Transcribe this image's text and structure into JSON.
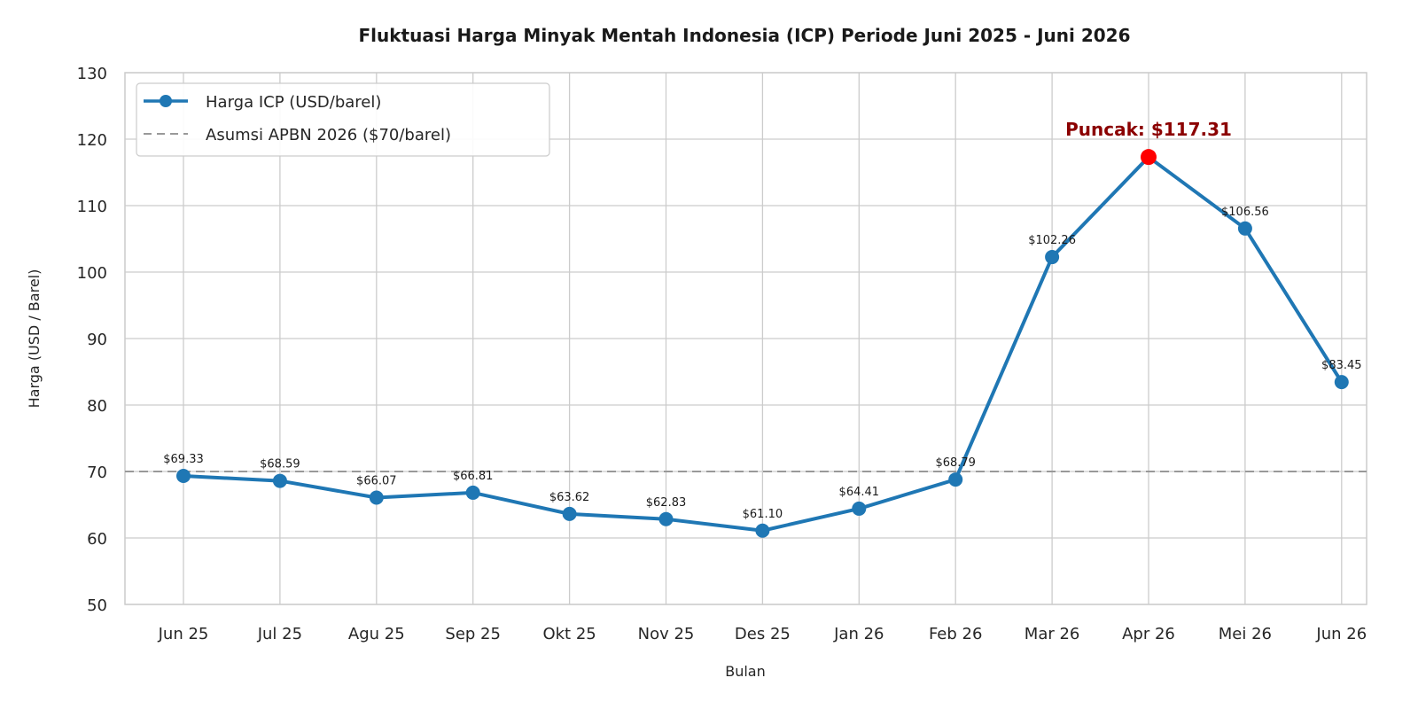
{
  "chart_data": {
    "type": "line",
    "title": "Fluktuasi Harga Minyak Mentah Indonesia (ICP) Periode Juni 2025 - Juni 2026",
    "xlabel": "Bulan",
    "ylabel": "Harga (USD / Barel)",
    "categories": [
      "Jun 25",
      "Jul 25",
      "Agu 25",
      "Sep 25",
      "Okt 25",
      "Nov 25",
      "Des 25",
      "Jan 26",
      "Feb 26",
      "Mar 26",
      "Apr 26",
      "Mei 26",
      "Jun 26"
    ],
    "series": [
      {
        "name": "Harga ICP (USD/barel)",
        "values": [
          69.33,
          68.59,
          66.07,
          66.81,
          63.62,
          62.83,
          61.1,
          64.41,
          68.79,
          102.26,
          117.31,
          106.56,
          83.45
        ],
        "data_labels": [
          "$69.33",
          "$68.59",
          "$66.07",
          "$66.81",
          "$63.62",
          "$62.83",
          "$61.10",
          "$64.41",
          "$68.79",
          "$102.26",
          "",
          "$106.56",
          "$83.45"
        ],
        "color": "#1f77b4"
      }
    ],
    "reference_line": {
      "name": "Asumsi APBN 2026 ($70/barel)",
      "value": 70,
      "color": "#999999",
      "style": "dashed"
    },
    "annotation": {
      "text": "Puncak: $117.31",
      "category": "Apr 26",
      "value": 117.31,
      "color": "#8b0000",
      "marker_color": "#ff0000"
    },
    "ylim": [
      50,
      130
    ],
    "yticks": [
      50,
      60,
      70,
      80,
      90,
      100,
      110,
      120,
      130
    ],
    "grid": true,
    "legend_position": "top-left"
  }
}
